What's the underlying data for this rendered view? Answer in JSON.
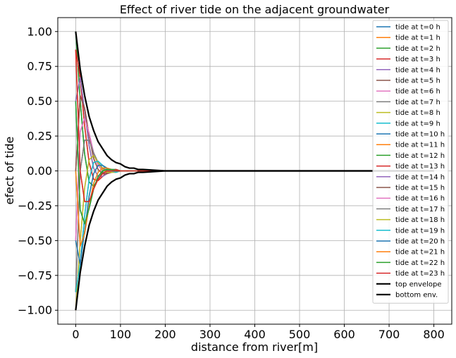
{
  "chart_data": {
    "type": "line",
    "title": "Effect of river tide on the adjacent groundwater",
    "xlabel": "distance from river[m]",
    "ylabel": "efect of tide",
    "xlim": [
      -40,
      840
    ],
    "ylim": [
      -1.1,
      1.1
    ],
    "x_ticks": [
      "0",
      "100",
      "200",
      "300",
      "400",
      "500",
      "600",
      "700",
      "800"
    ],
    "y_ticks": [
      "−1.00",
      "−0.75",
      "−0.50",
      "−0.25",
      "0.00",
      "0.25",
      "0.50",
      "0.75",
      "1.00"
    ],
    "grid": true,
    "legend_position": "top-right",
    "x": [
      0,
      10,
      20,
      30,
      40,
      50,
      60,
      70,
      80,
      90,
      100,
      110,
      120,
      130,
      140,
      150,
      200,
      300,
      400,
      500,
      600,
      700,
      800
    ],
    "series": [
      {
        "name": "tide at t=0 h",
        "color": "#1f77b4",
        "values": [
          1.0,
          0.51,
          0.12,
          -0.08,
          -0.11,
          -0.06,
          -0.01,
          0.01,
          0.01,
          0.01,
          0.0,
          0,
          0,
          0,
          0,
          0,
          0,
          0,
          0,
          0,
          0,
          0,
          0
        ]
      },
      {
        "name": "tide at t=1 h",
        "color": "#ff7f0e",
        "values": [
          0.87,
          0.67,
          0.32,
          0.06,
          -0.06,
          -0.07,
          -0.04,
          -0.01,
          0.0,
          0.01,
          0.0,
          0,
          0,
          0,
          0,
          0,
          0,
          0,
          0,
          0,
          0,
          0,
          0
        ]
      },
      {
        "name": "tide at t=2 h",
        "color": "#2ca02c",
        "values": [
          0.5,
          0.67,
          0.43,
          0.18,
          0.02,
          -0.04,
          -0.04,
          -0.02,
          -0.01,
          0.0,
          0.0,
          0,
          0,
          0,
          0,
          0,
          0,
          0,
          0,
          0,
          0,
          0,
          0
        ]
      },
      {
        "name": "tide at t=3 h",
        "color": "#d62728",
        "values": [
          0.0,
          0.54,
          0.45,
          0.25,
          0.09,
          0.01,
          -0.02,
          -0.02,
          -0.01,
          0.0,
          0.0,
          0,
          0,
          0,
          0,
          0,
          0,
          0,
          0,
          0,
          0,
          0,
          0
        ]
      },
      {
        "name": "tide at t=4 h",
        "color": "#9467bd",
        "values": [
          -0.5,
          0.28,
          0.38,
          0.27,
          0.13,
          0.04,
          0.0,
          -0.01,
          -0.01,
          0.0,
          0.0,
          0,
          0,
          0,
          0,
          0,
          0,
          0,
          0,
          0,
          0,
          0,
          0
        ]
      },
      {
        "name": "tide at t=5 h",
        "color": "#8c564b",
        "values": [
          -0.87,
          0.0,
          0.22,
          0.22,
          0.13,
          0.06,
          0.02,
          0.0,
          0.0,
          0.0,
          0.0,
          0,
          0,
          0,
          0,
          0,
          0,
          0,
          0,
          0,
          0,
          0,
          0
        ]
      },
      {
        "name": "tide at t=6 h",
        "color": "#e377c2",
        "values": [
          -1.0,
          -0.51,
          -0.12,
          0.08,
          0.11,
          0.06,
          0.01,
          -0.01,
          -0.01,
          -0.01,
          0.0,
          0,
          0,
          0,
          0,
          0,
          0,
          0,
          0,
          0,
          0,
          0,
          0
        ]
      },
      {
        "name": "tide at t=7 h",
        "color": "#7f7f7f",
        "values": [
          -0.87,
          -0.67,
          -0.32,
          -0.06,
          0.06,
          0.07,
          0.04,
          0.01,
          0.0,
          -0.01,
          0.0,
          0,
          0,
          0,
          0,
          0,
          0,
          0,
          0,
          0,
          0,
          0,
          0
        ]
      },
      {
        "name": "tide at t=8 h",
        "color": "#bcbd22",
        "values": [
          -0.5,
          -0.67,
          -0.43,
          -0.18,
          -0.02,
          0.04,
          0.04,
          0.02,
          0.01,
          0.0,
          0.0,
          0,
          0,
          0,
          0,
          0,
          0,
          0,
          0,
          0,
          0,
          0,
          0
        ]
      },
      {
        "name": "tide at t=9 h",
        "color": "#17becf",
        "values": [
          0.0,
          -0.54,
          -0.45,
          -0.25,
          -0.09,
          -0.01,
          0.02,
          0.02,
          0.01,
          0.0,
          0.0,
          0,
          0,
          0,
          0,
          0,
          0,
          0,
          0,
          0,
          0,
          0,
          0
        ]
      },
      {
        "name": "tide at t=10 h",
        "color": "#1f77b4",
        "values": [
          0.5,
          -0.28,
          -0.38,
          -0.27,
          -0.13,
          -0.04,
          0.0,
          0.01,
          0.01,
          0.0,
          0.0,
          0,
          0,
          0,
          0,
          0,
          0,
          0,
          0,
          0,
          0,
          0,
          0
        ]
      },
      {
        "name": "tide at t=11 h",
        "color": "#ff7f0e",
        "values": [
          0.87,
          0.0,
          -0.22,
          -0.22,
          -0.13,
          -0.06,
          -0.02,
          0.0,
          0.0,
          0.0,
          0.0,
          0,
          0,
          0,
          0,
          0,
          0,
          0,
          0,
          0,
          0,
          0,
          0
        ]
      },
      {
        "name": "tide at t=12 h",
        "color": "#2ca02c",
        "values": [
          1.0,
          0.51,
          0.12,
          -0.08,
          -0.11,
          -0.06,
          -0.01,
          0.01,
          0.01,
          0.01,
          0.0,
          0,
          0,
          0,
          0,
          0,
          0,
          0,
          0,
          0,
          0,
          0,
          0
        ]
      },
      {
        "name": "tide at t=13 h",
        "color": "#d62728",
        "values": [
          0.87,
          0.67,
          0.32,
          0.06,
          -0.06,
          -0.07,
          -0.04,
          -0.01,
          0.0,
          0.01,
          0.0,
          0,
          0,
          0,
          0,
          0,
          0,
          0,
          0,
          0,
          0,
          0,
          0
        ]
      },
      {
        "name": "tide at t=14 h",
        "color": "#9467bd",
        "values": [
          0.5,
          0.67,
          0.43,
          0.18,
          0.02,
          -0.04,
          -0.04,
          -0.02,
          -0.01,
          0.0,
          0.0,
          0,
          0,
          0,
          0,
          0,
          0,
          0,
          0,
          0,
          0,
          0,
          0
        ]
      },
      {
        "name": "tide at t=15 h",
        "color": "#8c564b",
        "values": [
          0.0,
          0.54,
          0.45,
          0.25,
          0.09,
          0.01,
          -0.02,
          -0.02,
          -0.01,
          0.0,
          0.0,
          0,
          0,
          0,
          0,
          0,
          0,
          0,
          0,
          0,
          0,
          0,
          0
        ]
      },
      {
        "name": "tide at t=16 h",
        "color": "#e377c2",
        "values": [
          -0.5,
          0.28,
          0.38,
          0.27,
          0.13,
          0.04,
          0.0,
          -0.01,
          -0.01,
          0.0,
          0.0,
          0,
          0,
          0,
          0,
          0,
          0,
          0,
          0,
          0,
          0,
          0,
          0
        ]
      },
      {
        "name": "tide at t=17 h",
        "color": "#7f7f7f",
        "values": [
          -0.87,
          0.0,
          0.22,
          0.22,
          0.13,
          0.06,
          0.02,
          0.0,
          0.0,
          0.0,
          0.0,
          0,
          0,
          0,
          0,
          0,
          0,
          0,
          0,
          0,
          0,
          0,
          0
        ]
      },
      {
        "name": "tide at t=18 h",
        "color": "#bcbd22",
        "values": [
          -1.0,
          -0.51,
          -0.12,
          0.08,
          0.11,
          0.06,
          0.01,
          -0.01,
          -0.01,
          -0.01,
          0.0,
          0,
          0,
          0,
          0,
          0,
          0,
          0,
          0,
          0,
          0,
          0,
          0
        ]
      },
      {
        "name": "tide at t=19 h",
        "color": "#17becf",
        "values": [
          -0.87,
          -0.67,
          -0.32,
          -0.06,
          0.06,
          0.07,
          0.04,
          0.01,
          0.0,
          -0.01,
          0.0,
          0,
          0,
          0,
          0,
          0,
          0,
          0,
          0,
          0,
          0,
          0,
          0
        ]
      },
      {
        "name": "tide at t=20 h",
        "color": "#1f77b4",
        "values": [
          -0.5,
          -0.67,
          -0.43,
          -0.18,
          -0.02,
          0.04,
          0.04,
          0.02,
          0.01,
          0.0,
          0.0,
          0,
          0,
          0,
          0,
          0,
          0,
          0,
          0,
          0,
          0,
          0,
          0
        ]
      },
      {
        "name": "tide at t=21 h",
        "color": "#ff7f0e",
        "values": [
          0.0,
          -0.54,
          -0.45,
          -0.25,
          -0.09,
          -0.01,
          0.02,
          0.02,
          0.01,
          0.0,
          0.0,
          0,
          0,
          0,
          0,
          0,
          0,
          0,
          0,
          0,
          0,
          0,
          0
        ]
      },
      {
        "name": "tide at t=22 h",
        "color": "#2ca02c",
        "values": [
          0.5,
          -0.28,
          -0.38,
          -0.27,
          -0.13,
          -0.04,
          0.0,
          0.01,
          0.01,
          0.0,
          0.0,
          0,
          0,
          0,
          0,
          0,
          0,
          0,
          0,
          0,
          0,
          0,
          0
        ]
      },
      {
        "name": "tide at t=23 h",
        "color": "#d62728",
        "values": [
          0.87,
          0.0,
          -0.22,
          -0.22,
          -0.13,
          -0.06,
          -0.02,
          0.0,
          0.0,
          0.0,
          0.0,
          0,
          0,
          0,
          0,
          0,
          0,
          0,
          0,
          0,
          0,
          0,
          0
        ]
      },
      {
        "name": "top envelope",
        "color": "#000000",
        "values": [
          1.0,
          0.73,
          0.54,
          0.39,
          0.29,
          0.21,
          0.16,
          0.11,
          0.08,
          0.06,
          0.05,
          0.03,
          0.02,
          0.02,
          0.01,
          0.01,
          0.0,
          0,
          0,
          0,
          0,
          0,
          0
        ]
      },
      {
        "name": "bottom env.",
        "color": "#000000",
        "values": [
          -1.0,
          -0.73,
          -0.54,
          -0.39,
          -0.29,
          -0.21,
          -0.16,
          -0.11,
          -0.08,
          -0.06,
          -0.05,
          -0.03,
          -0.02,
          -0.02,
          -0.01,
          -0.01,
          0.0,
          0,
          0,
          0,
          0,
          0,
          0
        ]
      }
    ]
  }
}
